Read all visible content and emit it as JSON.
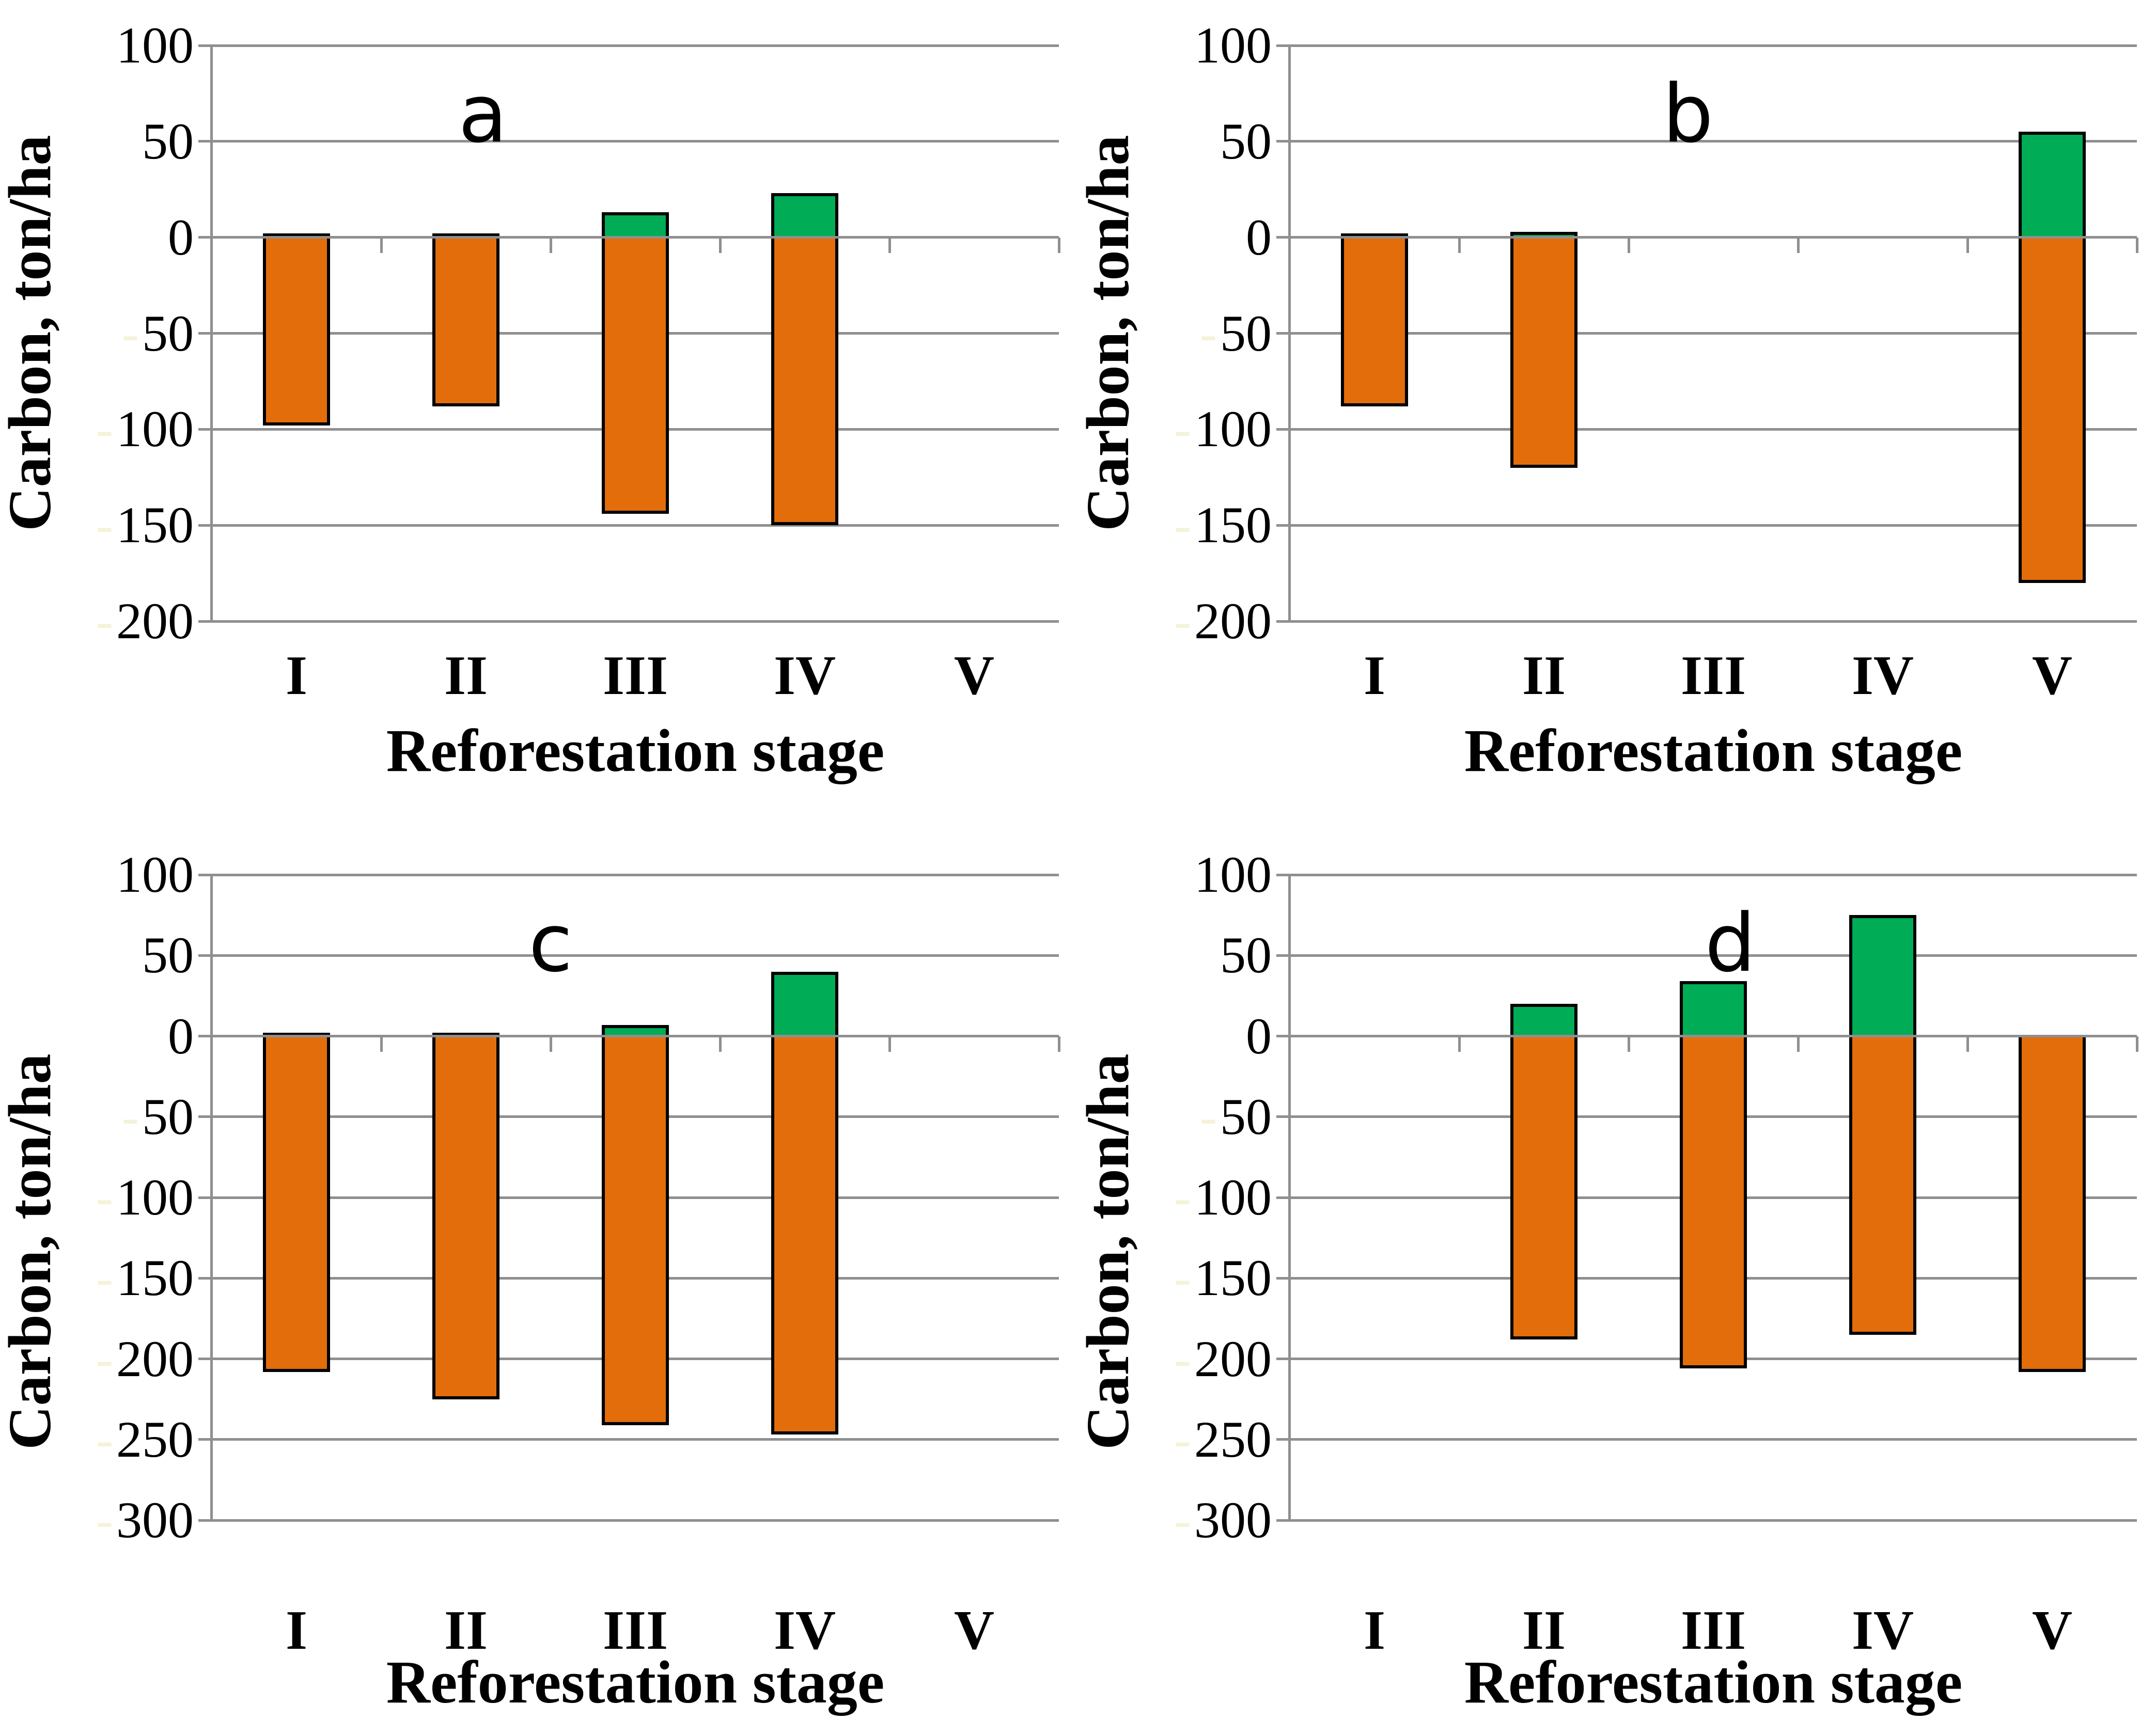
{
  "style": {
    "positive_color": "#00AC55",
    "negative_color": "#E36D0A",
    "gridline_color": "#8F8F8F",
    "bar_border_color": "#000000",
    "background": "#FFFFFF",
    "text_color": "#000000",
    "minus_sign": "-",
    "muted_minus_color": "#F5F2D8"
  },
  "chart_data": [
    {
      "id": "a",
      "type": "bar",
      "stacked": true,
      "title": "a",
      "categories": [
        "I",
        "II",
        "III",
        "IV",
        "V"
      ],
      "series": [
        {
          "name": "carbon-gain-green",
          "values": [
            2,
            2,
            13,
            23,
            null
          ]
        },
        {
          "name": "carbon-loss-orange",
          "values": [
            -98,
            -88,
            -144,
            -150,
            null
          ]
        }
      ],
      "xlabel": "Reforestation stage",
      "ylabel": "Carbon, ton/ha",
      "ylim": [
        -200,
        100
      ],
      "yticks": [
        100,
        50,
        0,
        -50,
        -100,
        -150,
        -200
      ],
      "ytick_labels": [
        "100",
        "50",
        "0",
        "50",
        "100",
        "150",
        "200"
      ],
      "grid": true,
      "legend": false
    },
    {
      "id": "b",
      "type": "bar",
      "stacked": true,
      "title": "b",
      "categories": [
        "I",
        "II",
        "III",
        "IV",
        "V"
      ],
      "series": [
        {
          "name": "carbon-gain-green",
          "values": [
            2,
            3,
            null,
            null,
            55
          ]
        },
        {
          "name": "carbon-loss-orange",
          "values": [
            -88,
            -120,
            null,
            null,
            -180
          ]
        }
      ],
      "xlabel": "Reforestation stage",
      "ylabel": "Carbon, ton/ha",
      "ylim": [
        -200,
        100
      ],
      "yticks": [
        100,
        50,
        0,
        -50,
        -100,
        -150,
        -200
      ],
      "ytick_labels": [
        "100",
        "50",
        "0",
        "50",
        "100",
        "150",
        "200"
      ],
      "grid": true,
      "legend": false
    },
    {
      "id": "c",
      "type": "bar",
      "stacked": true,
      "title": "c",
      "categories": [
        "I",
        "II",
        "III",
        "IV",
        "V"
      ],
      "series": [
        {
          "name": "carbon-gain-green",
          "values": [
            2,
            2,
            7,
            40,
            null
          ]
        },
        {
          "name": "carbon-loss-orange",
          "values": [
            -208,
            -225,
            -241,
            -247,
            null
          ]
        }
      ],
      "xlabel": "Reforestation stage",
      "ylabel": "Carbon, ton/ha",
      "ylim": [
        -300,
        100
      ],
      "yticks": [
        100,
        50,
        0,
        -50,
        -100,
        -150,
        -200,
        -250,
        -300
      ],
      "ytick_labels": [
        "100",
        "50",
        "0",
        "50",
        "100",
        "150",
        "200",
        "250",
        "300"
      ],
      "grid": true,
      "legend": false
    },
    {
      "id": "d",
      "type": "bar",
      "stacked": true,
      "title": "d",
      "categories": [
        "I",
        "II",
        "III",
        "IV",
        "V"
      ],
      "series": [
        {
          "name": "carbon-gain-green",
          "values": [
            null,
            20,
            34,
            75,
            0
          ]
        },
        {
          "name": "carbon-loss-orange",
          "values": [
            null,
            -188,
            -206,
            -185,
            -208
          ]
        }
      ],
      "xlabel": "Reforestation stage",
      "ylabel": "Carbon, ton/ha",
      "ylim": [
        -300,
        100
      ],
      "yticks": [
        100,
        50,
        0,
        -50,
        -100,
        -150,
        -200,
        -250,
        -300
      ],
      "ytick_labels": [
        "100",
        "50",
        "0",
        "50",
        "100",
        "150",
        "200",
        "250",
        "300"
      ],
      "grid": true,
      "legend": false
    }
  ]
}
